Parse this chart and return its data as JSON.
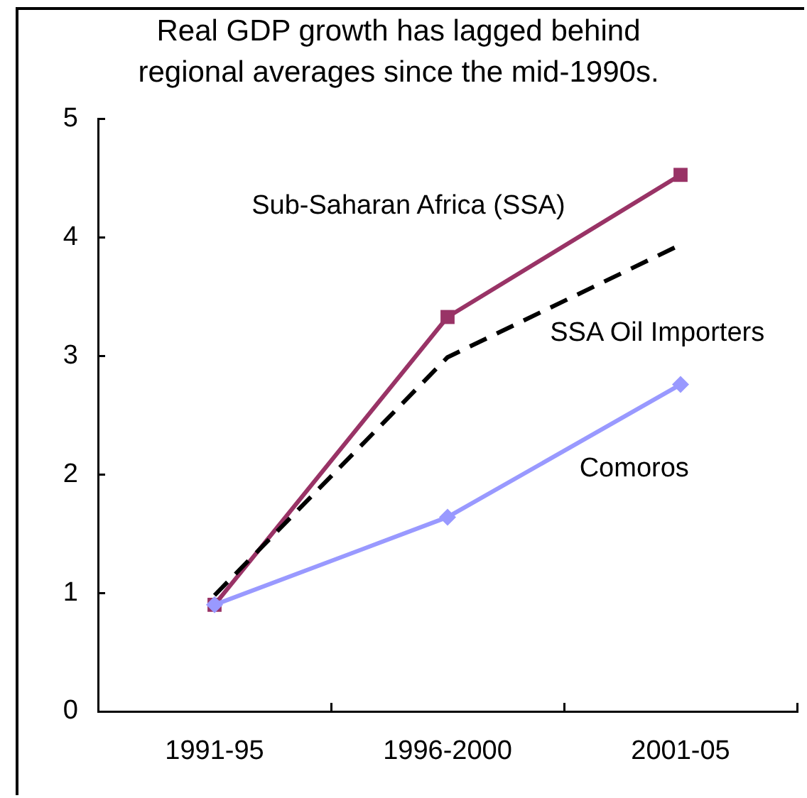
{
  "chart_data": {
    "type": "line",
    "title": "Real GDP growth has lagged behind\nregional averages since the mid-1990s.",
    "categories": [
      "1991-95",
      "1996-2000",
      "2001-05"
    ],
    "series": [
      {
        "name": "Sub-Saharan Africa (SSA)",
        "color": "#993366",
        "values": [
          0.9,
          3.33,
          4.53
        ],
        "marker": "square"
      },
      {
        "name": "SSA Oil Importers",
        "color": "#000000",
        "values": [
          0.98,
          2.99,
          3.94
        ],
        "marker": "none",
        "line_style": "dashed"
      },
      {
        "name": "Comoros",
        "color": "#9999ff",
        "values": [
          0.9,
          1.64,
          2.76
        ],
        "marker": "diamond"
      }
    ],
    "ylim": [
      0,
      5
    ],
    "yticks": [
      0,
      1,
      2,
      3,
      4,
      5
    ],
    "grid": false
  }
}
